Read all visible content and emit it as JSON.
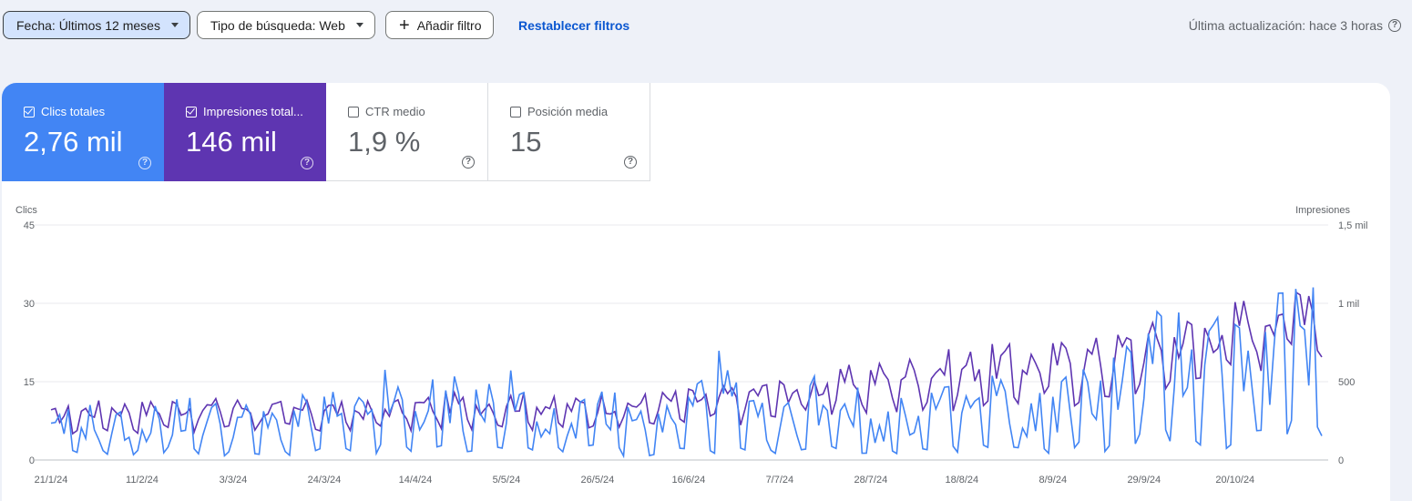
{
  "filters": {
    "date_chip": "Fecha: Últimos 12 meses",
    "search_type_chip": "Tipo de búsqueda: Web",
    "add_filter": "Añadir filtro",
    "reset": "Restablecer filtros"
  },
  "last_updated": "Última actualización: hace 3 horas",
  "metrics": [
    {
      "label": "Clics totales",
      "value": "2,76 mil",
      "checked": true,
      "color": "#4285f4"
    },
    {
      "label": "Impresiones total...",
      "value": "146 mil",
      "checked": true,
      "color": "#5e35b1"
    },
    {
      "label": "CTR medio",
      "value": "1,9 %",
      "checked": false
    },
    {
      "label": "Posición media",
      "value": "15",
      "checked": false
    }
  ],
  "chart_data": {
    "type": "line",
    "x_start": "21/1/24",
    "x_ticks": [
      "21/1/24",
      "11/2/24",
      "3/3/24",
      "24/3/24",
      "14/4/24",
      "5/5/24",
      "26/5/24",
      "16/6/24",
      "7/7/24",
      "28/7/24",
      "18/8/24",
      "8/9/24",
      "29/9/24",
      "20/10/24"
    ],
    "left_axis": {
      "label": "Clics",
      "ticks": [
        "0",
        "15",
        "30",
        "45"
      ],
      "range": [
        0,
        45
      ]
    },
    "right_axis": {
      "label": "Impresiones",
      "ticks": [
        "0",
        "500",
        "1 mil",
        "1,5 mil"
      ],
      "range": [
        0,
        1500
      ]
    },
    "grid": true,
    "series": [
      {
        "name": "Clics",
        "color": "#4285f4",
        "axis": "left",
        "weekly_values": [
          4,
          6,
          5,
          5,
          7,
          6,
          6,
          5,
          6,
          7,
          6,
          9,
          7,
          9,
          8,
          9,
          7,
          6,
          8,
          6,
          5,
          8,
          11,
          6,
          5,
          9,
          10,
          5,
          6,
          8,
          7,
          10,
          6,
          8,
          10,
          11,
          15,
          16,
          17,
          15,
          15,
          22,
          22,
          17,
          14,
          27,
          22,
          25,
          21,
          20
        ]
      },
      {
        "name": "Impresiones",
        "color": "#5e35b1",
        "axis": "right",
        "weekly_values": [
          250,
          280,
          300,
          290,
          310,
          300,
          310,
          300,
          280,
          300,
          280,
          300,
          310,
          330,
          320,
          340,
          320,
          300,
          330,
          320,
          340,
          350,
          360,
          390,
          400,
          430,
          450,
          480,
          500,
          530,
          540,
          560,
          560,
          580,
          590,
          620,
          670,
          700,
          740,
          790,
          870,
          940,
          1020,
          1120,
          1200,
          1180,
          1150,
          1050,
          950,
          1010
        ]
      }
    ]
  }
}
